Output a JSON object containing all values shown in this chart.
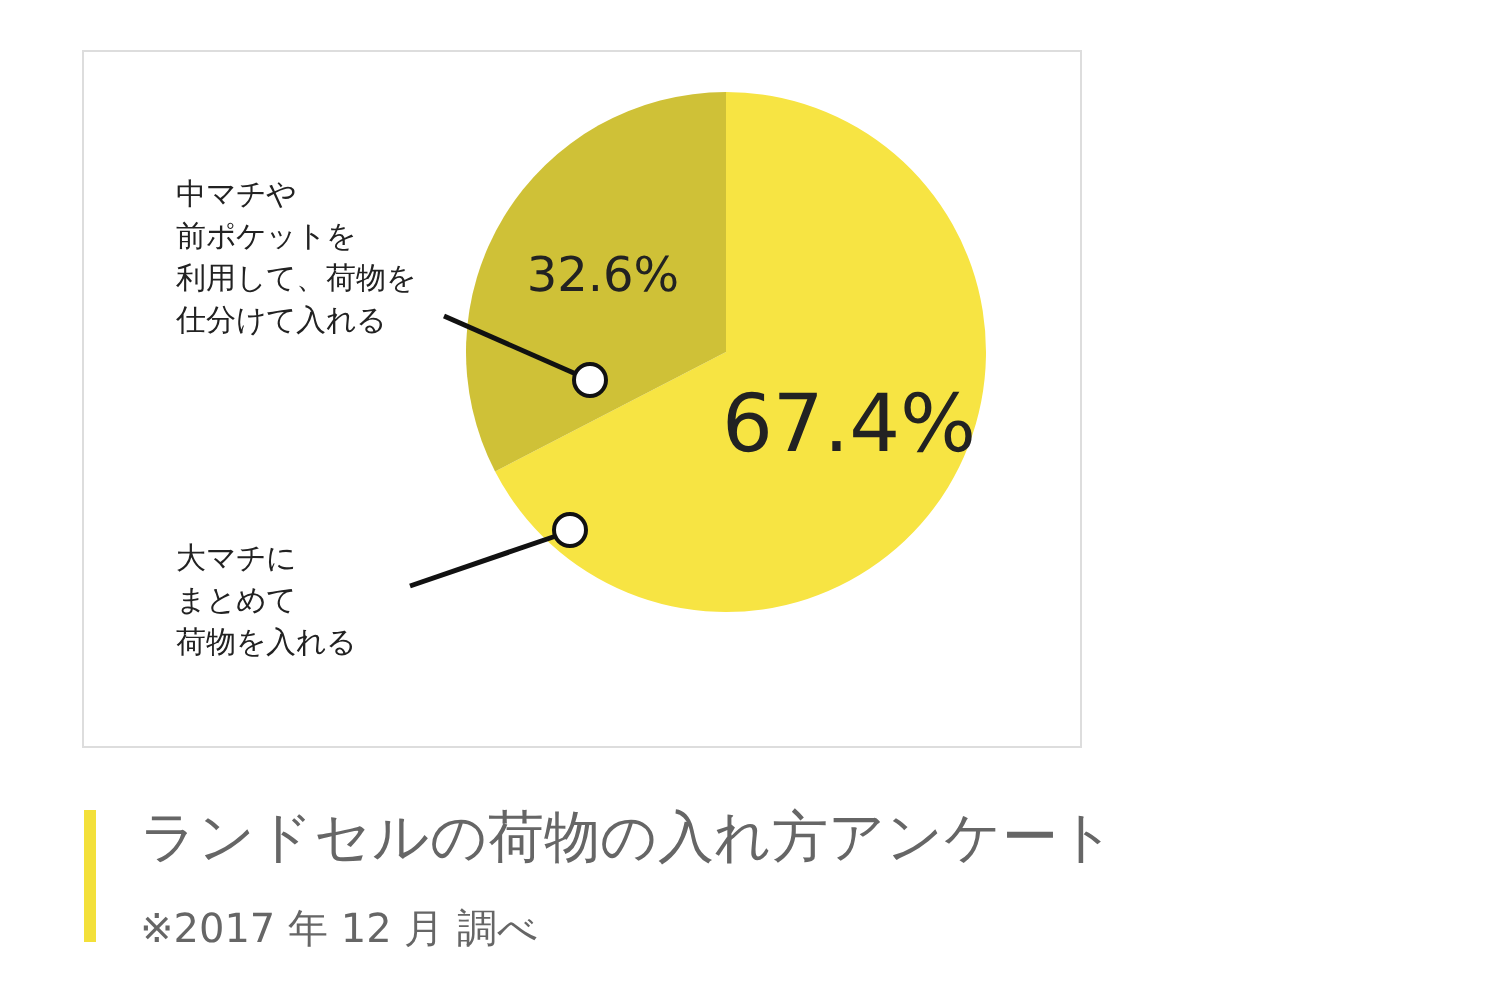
{
  "chart_data": {
    "type": "pie",
    "title": "ランドセルの荷物の入れ方アンケート",
    "annotations": [
      "※2017 年 12 月 調べ"
    ],
    "categories": [
      "大マチにまとめて荷物を入れる",
      "中マチや前ポケットを利用して、荷物を仕分けて入れる"
    ],
    "values": [
      67.4,
      32.6
    ],
    "colors": [
      "#f7e443",
      "#cfc137"
    ],
    "value_labels": [
      "67.4%",
      "32.6%"
    ]
  }
}
